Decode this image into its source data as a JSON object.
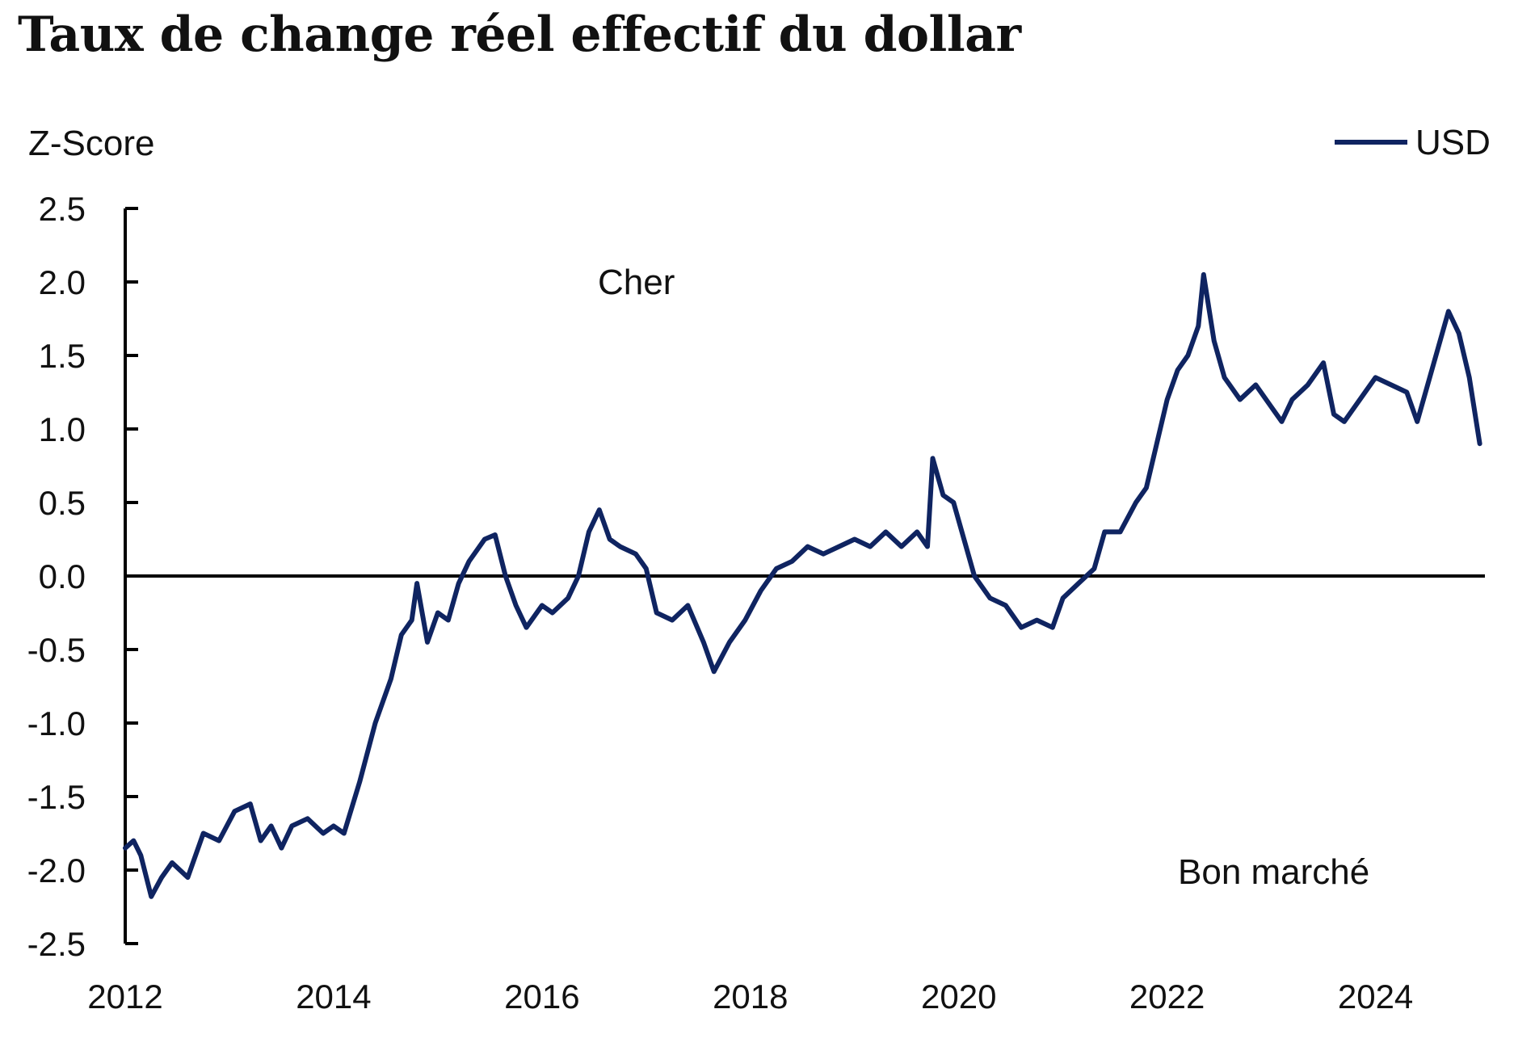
{
  "title": "Taux de change réel effectif du dollar",
  "chart_data": {
    "type": "line",
    "title": "Taux de change réel effectif du dollar",
    "ylabel": "Z-Score",
    "xlabel": "",
    "xlim": [
      2012,
      2025.05
    ],
    "ylim": [
      -2.5,
      2.5
    ],
    "xticks": [
      "2012",
      "2014",
      "2016",
      "2018",
      "2020",
      "2022",
      "2024"
    ],
    "yticks": [
      "2.5",
      "2.0",
      "1.5",
      "1.0",
      "0.5",
      "0.0",
      "-0.5",
      "-1.0",
      "-1.5",
      "-2.0",
      "-2.5"
    ],
    "legend": "top-right",
    "annotations": [
      "Cher",
      "Bon marché"
    ],
    "series": [
      {
        "name": "USD",
        "color": "#0f2461",
        "x": [
          2012.0,
          2012.08,
          2012.15,
          2012.25,
          2012.35,
          2012.45,
          2012.6,
          2012.75,
          2012.9,
          2013.05,
          2013.2,
          2013.3,
          2013.4,
          2013.5,
          2013.6,
          2013.75,
          2013.9,
          2014.0,
          2014.1,
          2014.25,
          2014.4,
          2014.55,
          2014.65,
          2014.75,
          2014.8,
          2014.9,
          2015.0,
          2015.1,
          2015.2,
          2015.3,
          2015.45,
          2015.55,
          2015.65,
          2015.75,
          2015.85,
          2016.0,
          2016.1,
          2016.25,
          2016.35,
          2016.45,
          2016.55,
          2016.65,
          2016.75,
          2016.9,
          2017.0,
          2017.1,
          2017.25,
          2017.4,
          2017.55,
          2017.65,
          2017.8,
          2017.95,
          2018.1,
          2018.25,
          2018.4,
          2018.55,
          2018.7,
          2018.85,
          2019.0,
          2019.15,
          2019.3,
          2019.45,
          2019.6,
          2019.7,
          2019.75,
          2019.85,
          2019.95,
          2020.05,
          2020.15,
          2020.3,
          2020.45,
          2020.6,
          2020.75,
          2020.9,
          2021.0,
          2021.15,
          2021.3,
          2021.4,
          2021.55,
          2021.7,
          2021.8,
          2021.9,
          2022.0,
          2022.1,
          2022.2,
          2022.3,
          2022.35,
          2022.45,
          2022.55,
          2022.7,
          2022.85,
          2023.0,
          2023.1,
          2023.2,
          2023.35,
          2023.5,
          2023.6,
          2023.7,
          2023.85,
          2024.0,
          2024.15,
          2024.3,
          2024.4,
          2024.5,
          2024.6,
          2024.7,
          2024.8,
          2024.9,
          2025.0
        ],
        "y": [
          -1.85,
          -1.8,
          -1.9,
          -2.18,
          -2.05,
          -1.95,
          -2.05,
          -1.75,
          -1.8,
          -1.6,
          -1.55,
          -1.8,
          -1.7,
          -1.85,
          -1.7,
          -1.65,
          -1.75,
          -1.7,
          -1.75,
          -1.4,
          -1.0,
          -0.7,
          -0.4,
          -0.3,
          -0.05,
          -0.45,
          -0.25,
          -0.3,
          -0.05,
          0.1,
          0.25,
          0.28,
          0.0,
          -0.2,
          -0.35,
          -0.2,
          -0.25,
          -0.15,
          0.0,
          0.3,
          0.45,
          0.25,
          0.2,
          0.15,
          0.05,
          -0.25,
          -0.3,
          -0.2,
          -0.45,
          -0.65,
          -0.45,
          -0.3,
          -0.1,
          0.05,
          0.1,
          0.2,
          0.15,
          0.2,
          0.25,
          0.2,
          0.3,
          0.2,
          0.3,
          0.2,
          0.8,
          0.55,
          0.5,
          0.25,
          0.0,
          -0.15,
          -0.2,
          -0.35,
          -0.3,
          -0.35,
          -0.15,
          -0.05,
          0.05,
          0.3,
          0.3,
          0.5,
          0.6,
          0.9,
          1.2,
          1.4,
          1.5,
          1.7,
          2.05,
          1.6,
          1.35,
          1.2,
          1.3,
          1.15,
          1.05,
          1.2,
          1.3,
          1.45,
          1.1,
          1.05,
          1.2,
          1.35,
          1.3,
          1.25,
          1.05,
          1.3,
          1.55,
          1.8,
          1.65,
          1.35,
          0.9
        ]
      }
    ]
  }
}
